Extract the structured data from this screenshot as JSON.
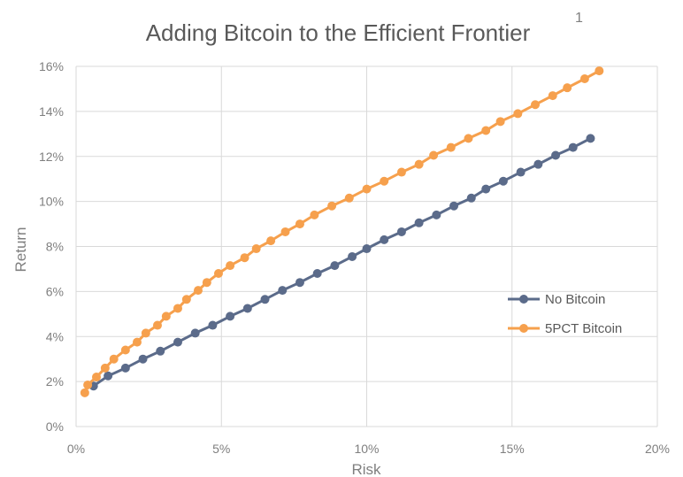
{
  "chart_data": {
    "type": "line",
    "title": "Adding Bitcoin to the Efficient Frontier",
    "title_marker": "1",
    "xlabel": "Risk",
    "ylabel": "Return",
    "xlim": [
      0,
      20
    ],
    "ylim": [
      0,
      16
    ],
    "x_ticks": [
      "0%",
      "5%",
      "10%",
      "15%",
      "20%"
    ],
    "y_ticks": [
      "0%",
      "2%",
      "4%",
      "6%",
      "8%",
      "10%",
      "12%",
      "14%",
      "16%"
    ],
    "grid": true,
    "legend_position": "right",
    "series": [
      {
        "name": "No Bitcoin",
        "color": "#5b6b8a",
        "points": [
          [
            0.6,
            1.8
          ],
          [
            1.1,
            2.25
          ],
          [
            1.7,
            2.6
          ],
          [
            2.3,
            3.0
          ],
          [
            2.9,
            3.35
          ],
          [
            3.5,
            3.75
          ],
          [
            4.1,
            4.15
          ],
          [
            4.7,
            4.5
          ],
          [
            5.3,
            4.9
          ],
          [
            5.9,
            5.25
          ],
          [
            6.5,
            5.65
          ],
          [
            7.1,
            6.05
          ],
          [
            7.7,
            6.4
          ],
          [
            8.3,
            6.8
          ],
          [
            8.9,
            7.15
          ],
          [
            9.5,
            7.55
          ],
          [
            10.0,
            7.9
          ],
          [
            10.6,
            8.3
          ],
          [
            11.2,
            8.65
          ],
          [
            11.8,
            9.05
          ],
          [
            12.4,
            9.4
          ],
          [
            13.0,
            9.8
          ],
          [
            13.6,
            10.15
          ],
          [
            14.1,
            10.55
          ],
          [
            14.7,
            10.9
          ],
          [
            15.3,
            11.3
          ],
          [
            15.9,
            11.65
          ],
          [
            16.5,
            12.05
          ],
          [
            17.1,
            12.4
          ],
          [
            17.7,
            12.8
          ]
        ]
      },
      {
        "name": "5PCT Bitcoin",
        "color": "#f6a04d",
        "points": [
          [
            0.3,
            1.5
          ],
          [
            0.4,
            1.85
          ],
          [
            0.7,
            2.2
          ],
          [
            1.0,
            2.6
          ],
          [
            1.3,
            3.0
          ],
          [
            1.7,
            3.4
          ],
          [
            2.1,
            3.75
          ],
          [
            2.4,
            4.15
          ],
          [
            2.8,
            4.5
          ],
          [
            3.1,
            4.9
          ],
          [
            3.5,
            5.25
          ],
          [
            3.8,
            5.65
          ],
          [
            4.2,
            6.05
          ],
          [
            4.5,
            6.4
          ],
          [
            4.9,
            6.8
          ],
          [
            5.3,
            7.15
          ],
          [
            5.8,
            7.5
          ],
          [
            6.2,
            7.9
          ],
          [
            6.7,
            8.25
          ],
          [
            7.2,
            8.65
          ],
          [
            7.7,
            9.0
          ],
          [
            8.2,
            9.4
          ],
          [
            8.8,
            9.8
          ],
          [
            9.4,
            10.15
          ],
          [
            10.0,
            10.55
          ],
          [
            10.6,
            10.9
          ],
          [
            11.2,
            11.3
          ],
          [
            11.8,
            11.65
          ],
          [
            12.3,
            12.05
          ],
          [
            12.9,
            12.4
          ],
          [
            13.5,
            12.8
          ],
          [
            14.1,
            13.15
          ],
          [
            14.6,
            13.55
          ],
          [
            15.2,
            13.9
          ],
          [
            15.8,
            14.3
          ],
          [
            16.4,
            14.7
          ],
          [
            16.9,
            15.05
          ],
          [
            17.5,
            15.45
          ],
          [
            18.0,
            15.8
          ]
        ]
      }
    ]
  }
}
